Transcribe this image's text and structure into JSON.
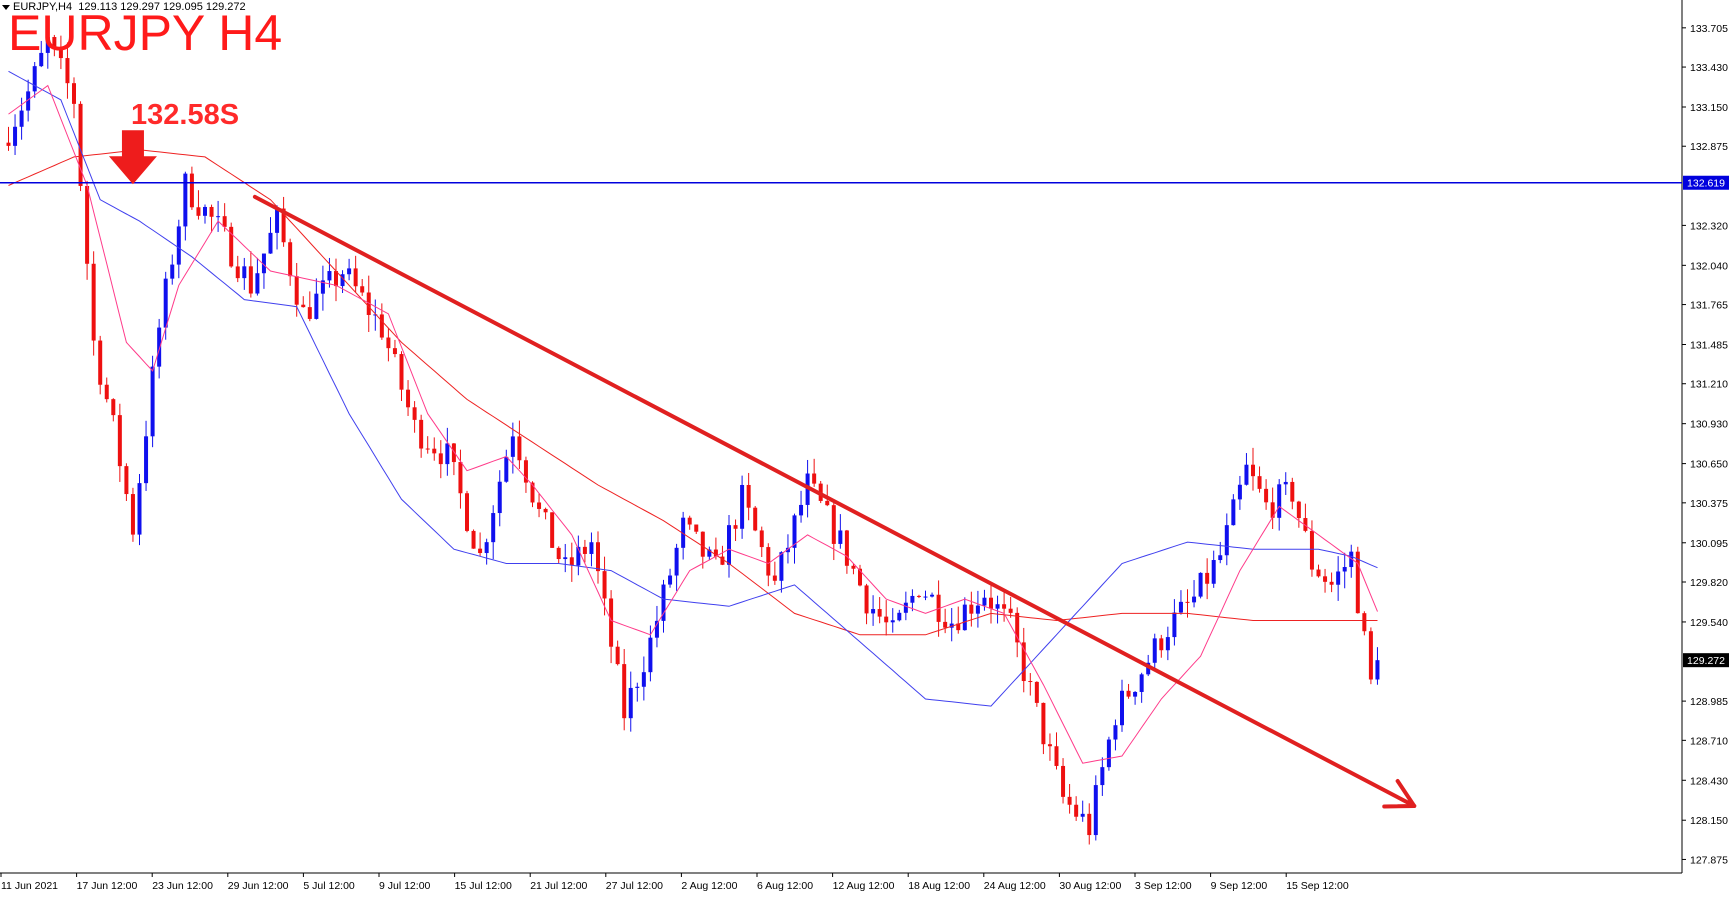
{
  "header": {
    "symbol_info": "EURJPY,H4",
    "ohlc": "129.113 129.297 129.095 129.272"
  },
  "annotations": {
    "title": "EURJPY H4",
    "level_label": "132.58S"
  },
  "colors": {
    "bull_candle": "#1010ee",
    "bear_candle": "#ee1010",
    "ma_fast": "#ff3b8a",
    "ma_mid": "#4040ee",
    "ma_slow": "#ee2222",
    "level_line": "#0000dd",
    "trend_arrow": "#e02020"
  },
  "chart_data": {
    "type": "candlestick",
    "y_axis_ticks": [
      "133.705",
      "133.430",
      "133.150",
      "132.875",
      "132.320",
      "132.040",
      "131.765",
      "131.485",
      "131.210",
      "130.930",
      "130.650",
      "130.375",
      "130.095",
      "129.820",
      "129.540",
      "128.985",
      "128.710",
      "128.430",
      "128.150",
      "127.875"
    ],
    "x_axis_ticks": [
      "11 Jun 2021",
      "17 Jun 12:00",
      "23 Jun 12:00",
      "29 Jun 12:00",
      "5 Jul 12:00",
      "9 Jul 12:00",
      "15 Jul 12:00",
      "21 Jul 12:00",
      "27 Jul 12:00",
      "2 Aug 12:00",
      "6 Aug 12:00",
      "12 Aug 12:00",
      "18 Aug 12:00",
      "24 Aug 12:00",
      "30 Aug 12:00",
      "3 Sep 12:00",
      "9 Sep 12:00",
      "15 Sep 12:00"
    ],
    "ylim": [
      127.78,
      133.83
    ],
    "horizontal_level": {
      "value": 132.619,
      "label": "132.619"
    },
    "current_price": {
      "value": 129.272,
      "label": "129.272"
    },
    "resistance_marker": {
      "value": 132.58,
      "bar_index": 19
    },
    "trend_line": {
      "start": {
        "bar_index": 38,
        "value": 132.52
      },
      "end": {
        "bar_index": 215,
        "value": 128.25
      }
    },
    "bar_count": 210,
    "price_path": [
      [
        0,
        132.9
      ],
      [
        4,
        133.25
      ],
      [
        7,
        133.6
      ],
      [
        11,
        133.2
      ],
      [
        14,
        131.5
      ],
      [
        17,
        130.9
      ],
      [
        20,
        130.2
      ],
      [
        24,
        131.6
      ],
      [
        28,
        132.6
      ],
      [
        33,
        132.3
      ],
      [
        38,
        131.9
      ],
      [
        42,
        132.35
      ],
      [
        46,
        131.7
      ],
      [
        52,
        132.0
      ],
      [
        58,
        131.6
      ],
      [
        63,
        130.9
      ],
      [
        68,
        130.7
      ],
      [
        73,
        130.0
      ],
      [
        78,
        130.9
      ],
      [
        82,
        130.3
      ],
      [
        86,
        129.9
      ],
      [
        90,
        130.1
      ],
      [
        95,
        128.9
      ],
      [
        99,
        129.4
      ],
      [
        104,
        130.2
      ],
      [
        109,
        129.9
      ],
      [
        113,
        130.4
      ],
      [
        118,
        129.8
      ],
      [
        123,
        130.5
      ],
      [
        128,
        130.1
      ],
      [
        132,
        129.7
      ],
      [
        136,
        129.45
      ],
      [
        140,
        129.8
      ],
      [
        145,
        129.55
      ],
      [
        150,
        129.75
      ],
      [
        154,
        129.5
      ],
      [
        158,
        128.9
      ],
      [
        162,
        128.3
      ],
      [
        166,
        128.1
      ],
      [
        170,
        128.9
      ],
      [
        174,
        129.2
      ],
      [
        178,
        129.5
      ],
      [
        182,
        129.7
      ],
      [
        186,
        130.0
      ],
      [
        190,
        130.6
      ],
      [
        193,
        130.35
      ],
      [
        197,
        130.45
      ],
      [
        200,
        129.95
      ],
      [
        203,
        129.8
      ],
      [
        206,
        130.0
      ],
      [
        209,
        129.1
      ],
      [
        212,
        128.85
      ],
      [
        215,
        129.27
      ]
    ],
    "ma_fast_path": [
      [
        0,
        133.1
      ],
      [
        6,
        133.3
      ],
      [
        12,
        132.6
      ],
      [
        18,
        131.5
      ],
      [
        22,
        131.3
      ],
      [
        26,
        131.9
      ],
      [
        32,
        132.35
      ],
      [
        40,
        132.0
      ],
      [
        50,
        131.9
      ],
      [
        58,
        131.7
      ],
      [
        64,
        131.0
      ],
      [
        70,
        130.6
      ],
      [
        76,
        130.7
      ],
      [
        80,
        130.5
      ],
      [
        86,
        130.15
      ],
      [
        92,
        129.55
      ],
      [
        98,
        129.45
      ],
      [
        104,
        129.9
      ],
      [
        110,
        130.05
      ],
      [
        116,
        129.95
      ],
      [
        122,
        130.15
      ],
      [
        128,
        130.0
      ],
      [
        134,
        129.7
      ],
      [
        140,
        129.6
      ],
      [
        146,
        129.7
      ],
      [
        152,
        129.6
      ],
      [
        158,
        129.1
      ],
      [
        164,
        128.55
      ],
      [
        170,
        128.6
      ],
      [
        176,
        129.0
      ],
      [
        182,
        129.3
      ],
      [
        188,
        129.9
      ],
      [
        194,
        130.35
      ],
      [
        200,
        130.15
      ],
      [
        206,
        129.95
      ],
      [
        210,
        129.5
      ],
      [
        215,
        129.3
      ]
    ],
    "ma_mid_path": [
      [
        0,
        133.4
      ],
      [
        8,
        133.2
      ],
      [
        14,
        132.5
      ],
      [
        20,
        132.35
      ],
      [
        28,
        132.1
      ],
      [
        36,
        131.8
      ],
      [
        44,
        131.75
      ],
      [
        52,
        131.0
      ],
      [
        60,
        130.4
      ],
      [
        68,
        130.05
      ],
      [
        76,
        129.95
      ],
      [
        84,
        129.95
      ],
      [
        92,
        129.9
      ],
      [
        100,
        129.7
      ],
      [
        110,
        129.65
      ],
      [
        120,
        129.8
      ],
      [
        130,
        129.4
      ],
      [
        140,
        129.0
      ],
      [
        150,
        128.95
      ],
      [
        160,
        129.45
      ],
      [
        170,
        129.95
      ],
      [
        180,
        130.1
      ],
      [
        190,
        130.05
      ],
      [
        200,
        130.05
      ],
      [
        205,
        130.0
      ],
      [
        210,
        129.9
      ],
      [
        215,
        129.95
      ]
    ],
    "ma_slow_path": [
      [
        0,
        132.6
      ],
      [
        10,
        132.8
      ],
      [
        20,
        132.85
      ],
      [
        30,
        132.8
      ],
      [
        40,
        132.5
      ],
      [
        50,
        132.0
      ],
      [
        60,
        131.5
      ],
      [
        70,
        131.1
      ],
      [
        80,
        130.8
      ],
      [
        90,
        130.5
      ],
      [
        100,
        130.25
      ],
      [
        110,
        129.95
      ],
      [
        120,
        129.6
      ],
      [
        130,
        129.45
      ],
      [
        140,
        129.45
      ],
      [
        150,
        129.6
      ],
      [
        160,
        129.55
      ],
      [
        170,
        129.6
      ],
      [
        180,
        129.6
      ],
      [
        190,
        129.55
      ],
      [
        200,
        129.55
      ],
      [
        210,
        129.55
      ],
      [
        215,
        129.5
      ]
    ]
  }
}
